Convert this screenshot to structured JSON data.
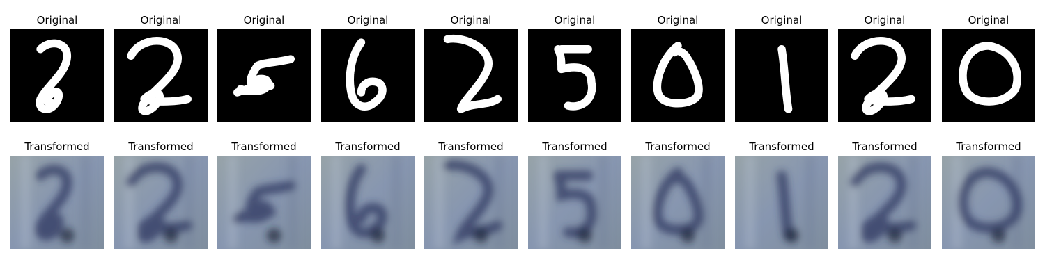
{
  "panels": {
    "original": [
      {
        "title": "Original",
        "digit": "2"
      },
      {
        "title": "Original",
        "digit": "2"
      },
      {
        "title": "Original",
        "digit": "5"
      },
      {
        "title": "Original",
        "digit": "6"
      },
      {
        "title": "Original",
        "digit": "2"
      },
      {
        "title": "Original",
        "digit": "5"
      },
      {
        "title": "Original",
        "digit": "0"
      },
      {
        "title": "Original",
        "digit": "1"
      },
      {
        "title": "Original",
        "digit": "2"
      },
      {
        "title": "Original",
        "digit": "0"
      }
    ],
    "transformed": [
      {
        "title": "Transformed"
      },
      {
        "title": "Transformed"
      },
      {
        "title": "Transformed"
      },
      {
        "title": "Transformed"
      },
      {
        "title": "Transformed"
      },
      {
        "title": "Transformed"
      },
      {
        "title": "Transformed"
      },
      {
        "title": "Transformed"
      },
      {
        "title": "Transformed"
      },
      {
        "title": "Transformed"
      }
    ]
  },
  "colors": {
    "original_bg": "#000000",
    "original_stroke": "#ffffff",
    "transformed_bg": "#8f9ca8",
    "transformed_stroke": "#2c3560"
  }
}
